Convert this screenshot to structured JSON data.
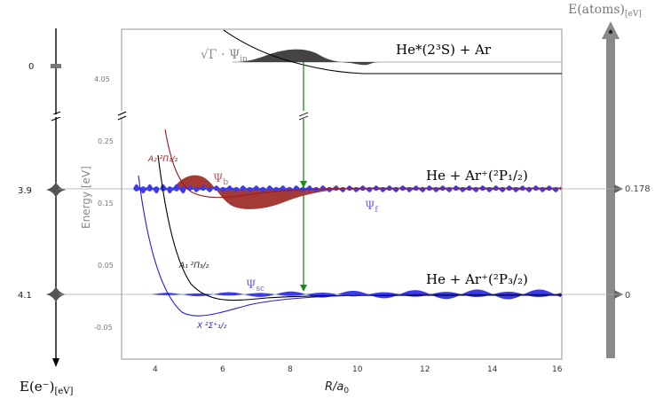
{
  "figure": {
    "left_axis": {
      "label": "E(e⁻)",
      "label_sub": "[eV]",
      "ticks": [
        "0",
        "3.9",
        "4.1"
      ]
    },
    "right_axis": {
      "label": "E(atoms)",
      "label_sub": "[eV]",
      "ticks": [
        "0.178",
        "0"
      ]
    },
    "x_axis": {
      "label": "R/a",
      "label_sub": "0",
      "ticks": [
        "4",
        "6",
        "8",
        "10",
        "12",
        "14",
        "16"
      ]
    },
    "y_axis": {
      "label": "Energy [eV]",
      "ticks": [
        "4.05",
        "0.25",
        "0.15",
        "0.05",
        "-0.05"
      ]
    },
    "asymptotes": {
      "top": "He*(2³S) + Ar",
      "mid": "He + Ar⁺(²P₁/₂)",
      "low": "He + Ar⁺(²P₃/₂)"
    },
    "potentials": {
      "A2": "A₂ ²Π₁/₂",
      "A1": "A₁ ²Π₃/₂",
      "X": "X ²Σ⁺₁/₂"
    },
    "wavefunctions": {
      "input": "√Γ · Ψ",
      "input_sub": "in",
      "bound": "Ψ",
      "bound_sub": "b",
      "final": "Ψ",
      "final_sub": "f",
      "scatter": "Ψ",
      "scatter_sub": "sc"
    },
    "colors": {
      "red": "#9e1b1b",
      "red_fill": "#a33a36",
      "blue": "#1f1fd6",
      "blue_fill": "#3b3bea",
      "green": "#1a8a1a",
      "gray_bar": "#8a8a8a"
    }
  }
}
